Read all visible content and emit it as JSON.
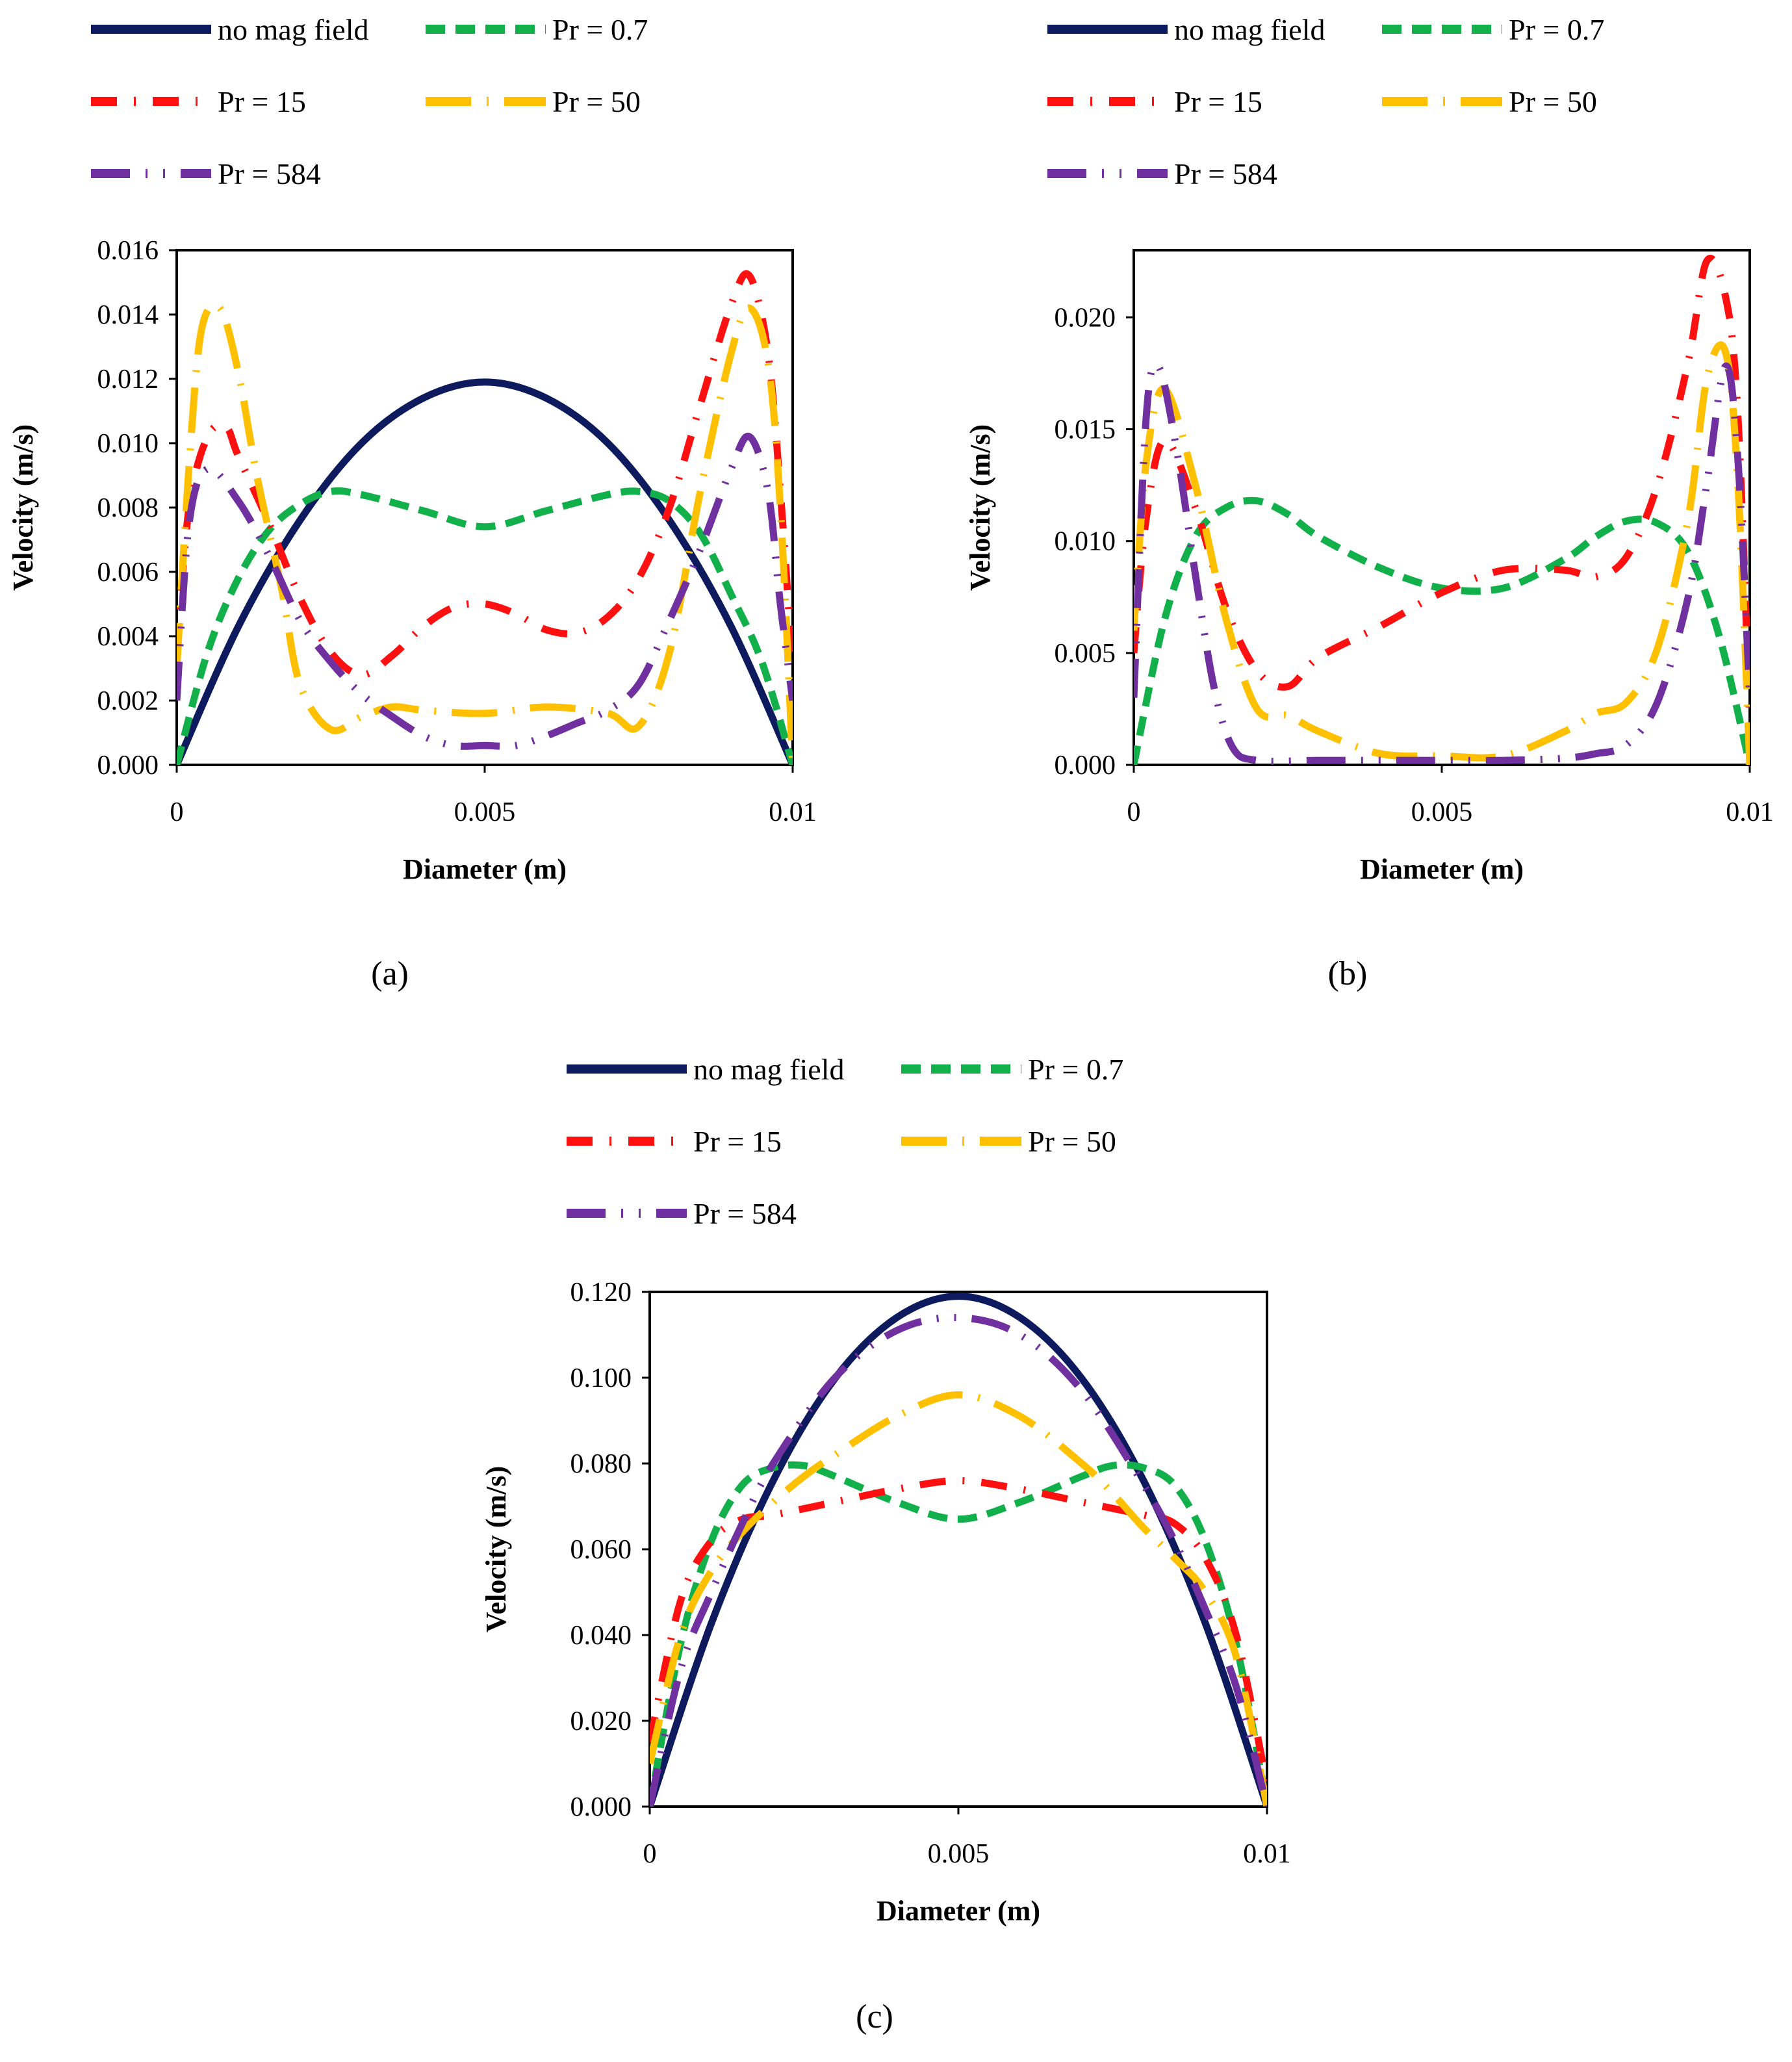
{
  "panel_labels": [
    "(a)",
    "(b)",
    "(c)"
  ],
  "legend": [
    {
      "label": "no mag field",
      "color": "#0d1b5e",
      "style": "solid"
    },
    {
      "label": "Pr = 0.7",
      "color": "#12b04a",
      "style": "dash"
    },
    {
      "label": "Pr = 15",
      "color": "#ff1010",
      "style": "dashdot"
    },
    {
      "label": "Pr = 50",
      "color": "#ffc000",
      "style": "longdashdot"
    },
    {
      "label": "Pr = 584",
      "color": "#7030a0",
      "style": "longdashdot2"
    }
  ],
  "chart_data": [
    {
      "type": "line",
      "panel": "(a)",
      "xlabel": "Diameter (m)",
      "ylabel": "Velocity (m/s)",
      "xlim": [
        0,
        0.01
      ],
      "ylim": [
        0,
        0.016
      ],
      "x_ticks": [
        0,
        0.005,
        0.01
      ],
      "x_tick_labels": [
        "0",
        "0.005",
        "0.01"
      ],
      "y_ticks": [
        0,
        0.002,
        0.004,
        0.006,
        0.008,
        0.01,
        0.012,
        0.014,
        0.016
      ],
      "y_tick_labels": [
        "0.000",
        "0.002",
        "0.004",
        "0.006",
        "0.008",
        "0.010",
        "0.012",
        "0.014",
        "0.016"
      ],
      "series": [
        {
          "name": "no mag field",
          "x": [
            0,
            0.001,
            0.002,
            0.003,
            0.004,
            0.005,
            0.006,
            0.007,
            0.008,
            0.009,
            0.01
          ],
          "y": [
            0,
            0.0043,
            0.0076,
            0.01,
            0.0114,
            0.0119,
            0.0114,
            0.01,
            0.0076,
            0.0043,
            0
          ]
        },
        {
          "name": "Pr = 0.7",
          "x": [
            0,
            0.0005,
            0.001,
            0.0015,
            0.002,
            0.0025,
            0.003,
            0.004,
            0.005,
            0.006,
            0.007,
            0.0075,
            0.008,
            0.0085,
            0.009,
            0.0095,
            0.01
          ],
          "y": [
            0,
            0.0035,
            0.0058,
            0.0073,
            0.0081,
            0.0085,
            0.0084,
            0.0079,
            0.0074,
            0.0079,
            0.0084,
            0.0085,
            0.0082,
            0.0072,
            0.0053,
            0.0032,
            0
          ]
        },
        {
          "name": "Pr = 15",
          "x": [
            0,
            0.0002,
            0.0005,
            0.0008,
            0.001,
            0.0015,
            0.002,
            0.0025,
            0.003,
            0.0035,
            0.004,
            0.0045,
            0.005,
            0.0055,
            0.006,
            0.0065,
            0.007,
            0.0075,
            0.008,
            0.0085,
            0.009,
            0.0093,
            0.0096,
            0.0098,
            0.01
          ],
          "y": [
            0.0035,
            0.008,
            0.0102,
            0.0105,
            0.0096,
            0.0075,
            0.0052,
            0.0035,
            0.0028,
            0.0034,
            0.0043,
            0.0049,
            0.005,
            0.0047,
            0.0042,
            0.0041,
            0.0046,
            0.0058,
            0.008,
            0.0112,
            0.0143,
            0.0152,
            0.0128,
            0.0085,
            0.003
          ]
        },
        {
          "name": "Pr = 50",
          "x": [
            0,
            0.0002,
            0.0004,
            0.0007,
            0.001,
            0.0013,
            0.0017,
            0.002,
            0.0025,
            0.003,
            0.0035,
            0.004,
            0.005,
            0.006,
            0.007,
            0.0075,
            0.008,
            0.0085,
            0.009,
            0.0093,
            0.0096,
            0.0098,
            0.01
          ],
          "y": [
            0.003,
            0.0093,
            0.0135,
            0.0142,
            0.0122,
            0.009,
            0.0055,
            0.0025,
            0.0011,
            0.0015,
            0.0018,
            0.0017,
            0.0016,
            0.0018,
            0.0016,
            0.0012,
            0.0035,
            0.0085,
            0.0128,
            0.0142,
            0.0125,
            0.008,
            0
          ]
        },
        {
          "name": "Pr = 584",
          "x": [
            0,
            0.0002,
            0.0005,
            0.001,
            0.0015,
            0.002,
            0.0025,
            0.003,
            0.0035,
            0.004,
            0.0045,
            0.005,
            0.0055,
            0.006,
            0.0065,
            0.007,
            0.0075,
            0.008,
            0.0085,
            0.009,
            0.0093,
            0.0096,
            0.0098,
            0.01
          ],
          "y": [
            0.002,
            0.0075,
            0.0092,
            0.0082,
            0.0065,
            0.0045,
            0.0032,
            0.0022,
            0.0015,
            0.0009,
            0.0006,
            0.0006,
            0.0006,
            0.0009,
            0.0013,
            0.0017,
            0.0025,
            0.0045,
            0.0067,
            0.0092,
            0.0102,
            0.0085,
            0.005,
            0.002
          ]
        }
      ]
    },
    {
      "type": "line",
      "panel": "(b)",
      "xlabel": "Diameter (m)",
      "ylabel": "Velocity (m/s)",
      "xlim": [
        0,
        0.01
      ],
      "ylim": [
        0,
        0.023
      ],
      "x_ticks": [
        0,
        0.005,
        0.01
      ],
      "x_tick_labels": [
        "0",
        "0.005",
        "0.01"
      ],
      "y_ticks": [
        0,
        0.005,
        0.01,
        0.015,
        0.02
      ],
      "y_tick_labels": [
        "0.000",
        "0.005",
        "0.010",
        "0.015",
        "0.020"
      ],
      "series": [
        {
          "name": "Pr = 0.7",
          "x": [
            0,
            0.0005,
            0.001,
            0.0015,
            0.002,
            0.0025,
            0.003,
            0.004,
            0.005,
            0.006,
            0.007,
            0.0075,
            0.008,
            0.0085,
            0.009,
            0.0095,
            0.01
          ],
          "y": [
            0,
            0.0065,
            0.0102,
            0.0115,
            0.0118,
            0.0112,
            0.0102,
            0.0088,
            0.0079,
            0.0079,
            0.0092,
            0.0102,
            0.0109,
            0.0108,
            0.0095,
            0.0058,
            0
          ]
        },
        {
          "name": "Pr = 15",
          "x": [
            0,
            0.0002,
            0.0005,
            0.001,
            0.0015,
            0.002,
            0.0025,
            0.003,
            0.004,
            0.005,
            0.006,
            0.007,
            0.0075,
            0.008,
            0.0085,
            0.009,
            0.0093,
            0.0096,
            0.0098,
            0.01
          ],
          "y": [
            0.005,
            0.011,
            0.0145,
            0.0115,
            0.007,
            0.0042,
            0.0035,
            0.0048,
            0.0062,
            0.0077,
            0.0087,
            0.0087,
            0.0084,
            0.0093,
            0.0125,
            0.018,
            0.0225,
            0.021,
            0.016,
            0.002
          ]
        },
        {
          "name": "Pr = 50",
          "x": [
            0,
            0.0002,
            0.0005,
            0.001,
            0.0015,
            0.002,
            0.0025,
            0.003,
            0.004,
            0.005,
            0.006,
            0.007,
            0.0075,
            0.008,
            0.0085,
            0.009,
            0.0093,
            0.0096,
            0.0098,
            0.01
          ],
          "y": [
            0.006,
            0.0135,
            0.0168,
            0.0125,
            0.0065,
            0.0025,
            0.0022,
            0.0015,
            0.0005,
            0.0004,
            0.0004,
            0.0015,
            0.0023,
            0.0028,
            0.0052,
            0.011,
            0.0172,
            0.0185,
            0.013,
            0
          ]
        },
        {
          "name": "Pr = 584",
          "x": [
            0,
            0.0002,
            0.0004,
            0.0007,
            0.001,
            0.0013,
            0.0016,
            0.002,
            0.003,
            0.004,
            0.005,
            0.006,
            0.007,
            0.0075,
            0.008,
            0.0085,
            0.009,
            0.0093,
            0.0096,
            0.0098,
            0.01
          ],
          "y": [
            0.003,
            0.0155,
            0.0178,
            0.014,
            0.0085,
            0.0035,
            0.0008,
            0.0002,
            0.0002,
            0.0002,
            0.0002,
            0.0002,
            0.0003,
            0.0005,
            0.0009,
            0.0028,
            0.0075,
            0.0125,
            0.0178,
            0.014,
            0.003
          ]
        }
      ]
    },
    {
      "type": "line",
      "panel": "(c)",
      "xlabel": "Diameter (m)",
      "ylabel": "Velocity (m/s)",
      "xlim": [
        0,
        0.01
      ],
      "ylim": [
        0,
        0.12
      ],
      "x_ticks": [
        0,
        0.005,
        0.01
      ],
      "x_tick_labels": [
        "0",
        "0.005",
        "0.01"
      ],
      "y_ticks": [
        0,
        0.02,
        0.04,
        0.06,
        0.08,
        0.1,
        0.12
      ],
      "y_tick_labels": [
        "0.000",
        "0.020",
        "0.040",
        "0.060",
        "0.080",
        "0.100",
        "0.120"
      ],
      "series": [
        {
          "name": "no mag field",
          "x": [
            0,
            0.001,
            0.002,
            0.003,
            0.004,
            0.005,
            0.006,
            0.007,
            0.008,
            0.009,
            0.01
          ],
          "y": [
            0,
            0.0428,
            0.076,
            0.0998,
            0.114,
            0.119,
            0.114,
            0.0998,
            0.076,
            0.0428,
            0
          ]
        },
        {
          "name": "Pr = 0.7",
          "x": [
            0,
            0.0005,
            0.001,
            0.0015,
            0.002,
            0.0025,
            0.003,
            0.004,
            0.005,
            0.006,
            0.007,
            0.0075,
            0.008,
            0.0085,
            0.009,
            0.0095,
            0.01
          ],
          "y": [
            0,
            0.038,
            0.062,
            0.075,
            0.079,
            0.0795,
            0.077,
            0.071,
            0.067,
            0.071,
            0.077,
            0.0795,
            0.079,
            0.075,
            0.062,
            0.038,
            0
          ]
        },
        {
          "name": "Pr = 15",
          "x": [
            0,
            0.0005,
            0.001,
            0.0015,
            0.002,
            0.003,
            0.004,
            0.005,
            0.006,
            0.007,
            0.008,
            0.0085,
            0.009,
            0.0095,
            0.01
          ],
          "y": [
            0.015,
            0.048,
            0.062,
            0.067,
            0.068,
            0.071,
            0.074,
            0.076,
            0.074,
            0.071,
            0.068,
            0.066,
            0.058,
            0.04,
            0.005
          ]
        },
        {
          "name": "Pr = 50",
          "x": [
            0,
            0.0005,
            0.001,
            0.0015,
            0.002,
            0.0025,
            0.003,
            0.004,
            0.005,
            0.006,
            0.007,
            0.0075,
            0.008,
            0.0085,
            0.009,
            0.0095,
            0.01
          ],
          "y": [
            0.01,
            0.04,
            0.055,
            0.064,
            0.071,
            0.077,
            0.082,
            0.091,
            0.096,
            0.091,
            0.08,
            0.073,
            0.065,
            0.058,
            0.05,
            0.035,
            0
          ]
        },
        {
          "name": "Pr = 584",
          "x": [
            0,
            0.0005,
            0.001,
            0.0015,
            0.002,
            0.003,
            0.004,
            0.005,
            0.006,
            0.007,
            0.008,
            0.0085,
            0.009,
            0.0095,
            0.01
          ],
          "y": [
            0,
            0.032,
            0.05,
            0.066,
            0.08,
            0.1,
            0.111,
            0.114,
            0.11,
            0.097,
            0.075,
            0.062,
            0.046,
            0.028,
            0
          ]
        }
      ]
    }
  ]
}
